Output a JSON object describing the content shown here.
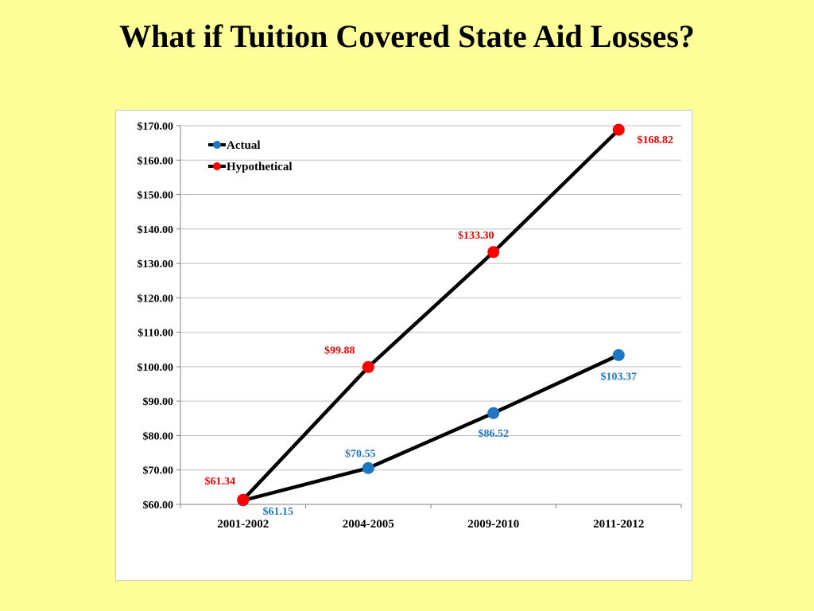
{
  "slide": {
    "title": "What if Tuition Covered State Aid Losses?"
  },
  "chart_data": {
    "type": "line",
    "title": "What if Tuition Covered State Aid Losses?",
    "xlabel": "",
    "ylabel": "",
    "categories": [
      "2001-2002",
      "2004-2005",
      "2009-2010",
      "2011-2012"
    ],
    "ylim": [
      60,
      170
    ],
    "ystep": 10,
    "grid": true,
    "legend_position": "top-left",
    "line_color": "#000000",
    "series": [
      {
        "name": "Actual",
        "color": "#1f77c4",
        "values": [
          61.15,
          70.55,
          86.52,
          103.37
        ],
        "labels": [
          "$61.15",
          "$70.55",
          "$86.52",
          "$103.37"
        ]
      },
      {
        "name": "Hypothetical",
        "color": "#ff0000",
        "values": [
          61.34,
          99.88,
          133.3,
          168.82
        ],
        "labels": [
          "$61.34",
          "$99.88",
          "$133.30",
          "$168.82"
        ]
      }
    ],
    "ytick_labels": [
      "$60.00",
      "$70.00",
      "$80.00",
      "$90.00",
      "$100.00",
      "$110.00",
      "$120.00",
      "$130.00",
      "$140.00",
      "$150.00",
      "$160.00",
      "$170.00"
    ]
  }
}
